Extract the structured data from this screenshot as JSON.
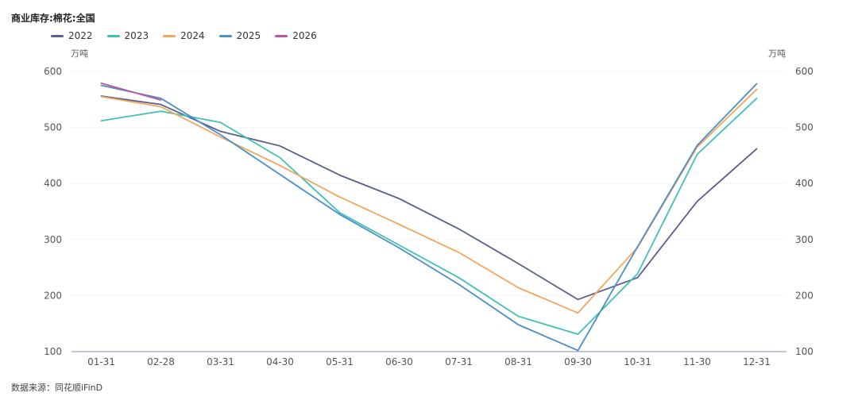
{
  "chart_data": {
    "type": "line",
    "title": "商业库存:棉花:全国",
    "ylabel_left": "万吨",
    "ylabel_right": "万吨",
    "ylim": [
      100,
      600
    ],
    "yticks": [
      100,
      200,
      300,
      400,
      500,
      600
    ],
    "categories": [
      "01-31",
      "02-28",
      "03-31",
      "04-30",
      "05-31",
      "06-30",
      "07-31",
      "08-31",
      "09-30",
      "10-31",
      "11-30",
      "12-31"
    ],
    "series": [
      {
        "name": "2022",
        "color": "#5a5f8f",
        "values": [
          556,
          541,
          493,
          467,
          415,
          373,
          319,
          257,
          193,
          232,
          368,
          462
        ]
      },
      {
        "name": "2023",
        "color": "#41c0b6",
        "values": [
          512,
          529,
          509,
          446,
          348,
          290,
          232,
          163,
          131,
          239,
          452,
          552
        ]
      },
      {
        "name": "2024",
        "color": "#f0a75c",
        "values": [
          555,
          537,
          483,
          432,
          376,
          327,
          277,
          214,
          169,
          286,
          465,
          568
        ]
      },
      {
        "name": "2025",
        "color": "#4a8fc9",
        "values": [
          575,
          552,
          487,
          416,
          345,
          285,
          220,
          148,
          102,
          287,
          468,
          578
        ]
      },
      {
        "name": "2026",
        "color": "#c3519c",
        "values": [
          579,
          549,
          null,
          null,
          null,
          null,
          null,
          null,
          null,
          null,
          null,
          null
        ]
      }
    ],
    "legend_position": "top-left",
    "grid": true
  },
  "source": "数据来源：同花顺iFinD"
}
